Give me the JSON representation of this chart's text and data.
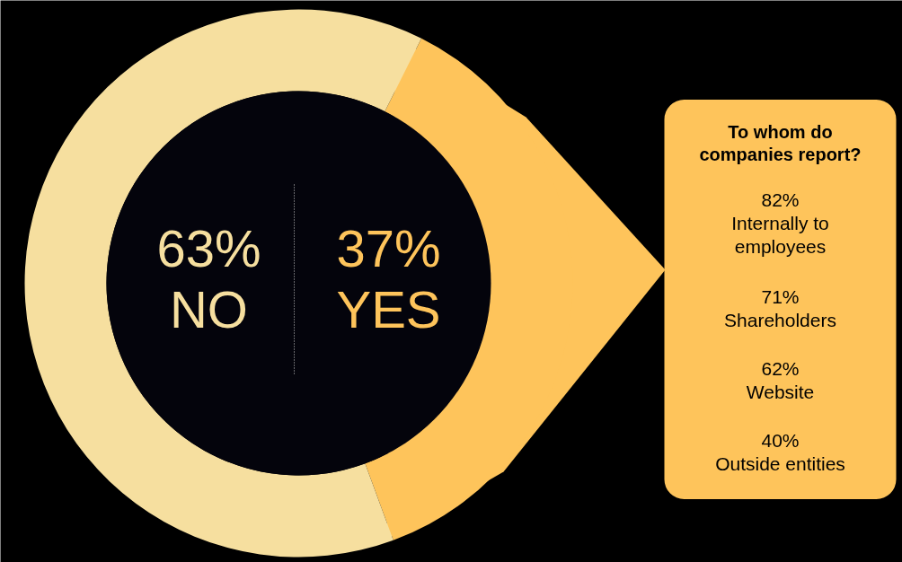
{
  "chart_data": {
    "type": "donut",
    "categories": [
      "NO",
      "YES"
    ],
    "values": [
      63,
      37
    ],
    "colors": [
      "#f6df9f",
      "#fec45b"
    ],
    "value_labels": [
      "63%",
      "37%"
    ],
    "annotations": [
      "To whom do\ncompanies report?",
      "82%\nInternally to\nemployees",
      "71%\nShareholders",
      "62%\nWebsite",
      "40%\nOutside entities"
    ]
  }
}
